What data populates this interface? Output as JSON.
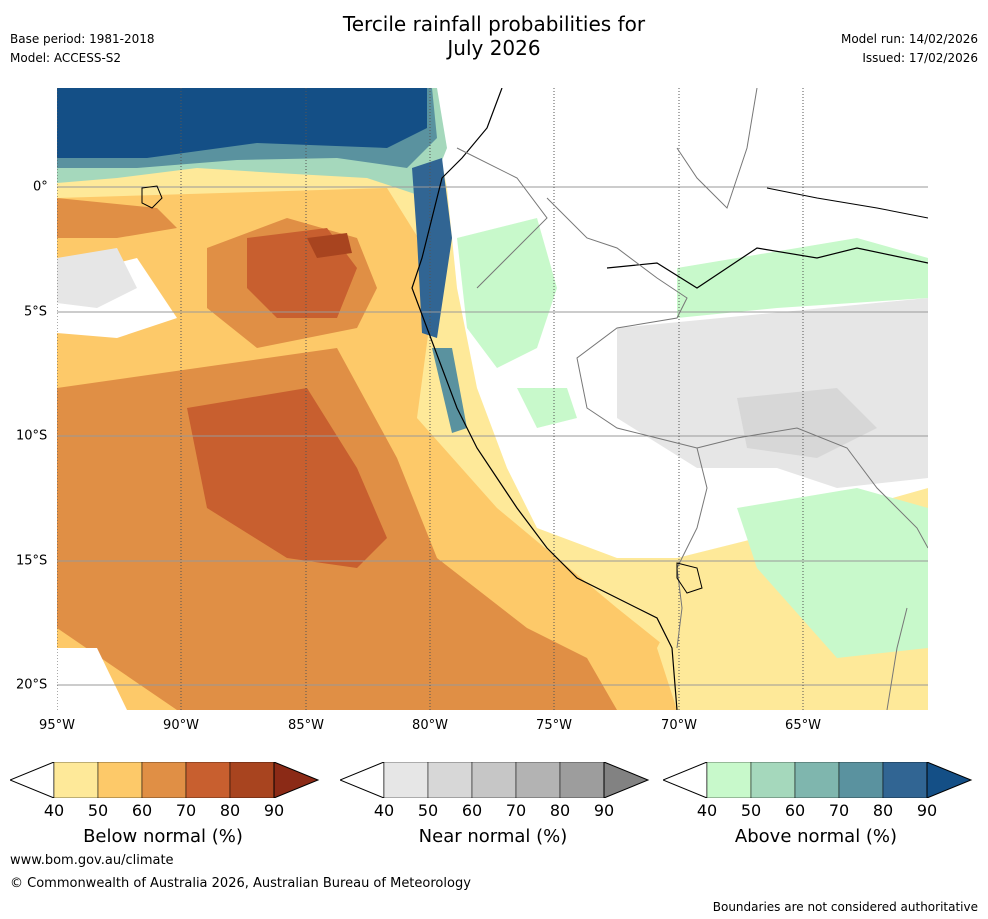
{
  "header": {
    "title_line1": "Tercile rainfall probabilities for",
    "title_line2": "July 2026",
    "base_period": "Base period: 1981-2018",
    "model": "Model: ACCESS-S2",
    "model_run": "Model run: 14/02/2026",
    "issued": "Issued: 17/02/2026"
  },
  "axes": {
    "x_ticks": [
      "95°W",
      "90°W",
      "85°W",
      "80°W",
      "75°W",
      "70°W",
      "65°W"
    ],
    "y_ticks": [
      "0°",
      "5°S",
      "10°S",
      "15°S",
      "20°S"
    ]
  },
  "colorbars": [
    {
      "label": "Below normal (%)",
      "ticks": [
        "40",
        "50",
        "60",
        "70",
        "80",
        "90"
      ],
      "colors": [
        "#fee999",
        "#fdc969",
        "#e08f45",
        "#c85f2f",
        "#a8441f",
        "#8b2a16"
      ]
    },
    {
      "label": "Near normal (%)",
      "ticks": [
        "40",
        "50",
        "60",
        "70",
        "80",
        "90"
      ],
      "colors": [
        "#e6e6e6",
        "#d7d7d7",
        "#c6c6c6",
        "#b3b3b3",
        "#9d9d9d",
        "#828282"
      ]
    },
    {
      "label": "Above normal (%)",
      "ticks": [
        "40",
        "50",
        "60",
        "70",
        "80",
        "90"
      ],
      "colors": [
        "#c8f9cb",
        "#a5d8bc",
        "#7fb6ae",
        "#5a929f",
        "#316593",
        "#144f86"
      ]
    }
  ],
  "footer": {
    "website": "www.bom.gov.au/climate",
    "copyright": "© Commonwealth of Australia 2026, Australian Bureau of Meteorology",
    "disclaimer": "Boundaries are not considered authoritative"
  }
}
